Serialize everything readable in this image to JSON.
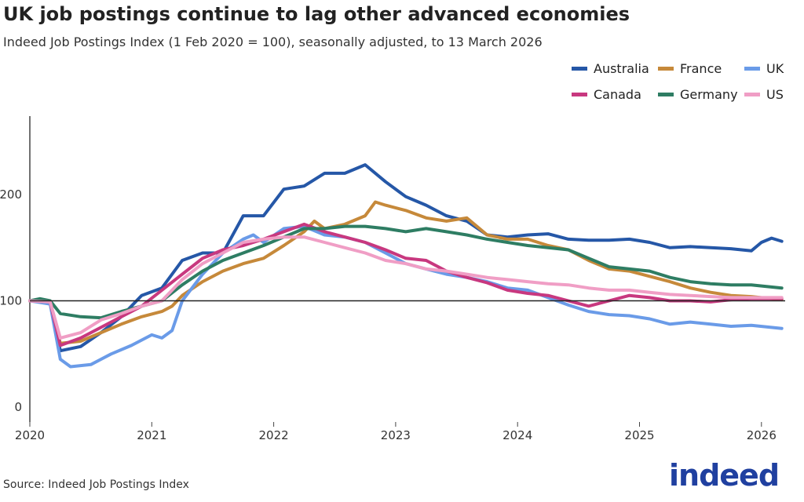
{
  "title": "UK job postings continue to lag other advanced economies",
  "subtitle": "Indeed Job Postings Index (1 Feb 2020 = 100), seasonally adjusted, to 13 March 2026",
  "source": "Source: Indeed Job Postings Index",
  "logo": "indeed",
  "chart_data": {
    "type": "line",
    "title": "UK job postings continue to lag other advanced economies",
    "xlabel": "",
    "ylabel": "",
    "xlim": [
      "2020-01",
      "2026-03"
    ],
    "ylim": [
      0,
      250
    ],
    "xticks": [
      "2020",
      "2021",
      "2022",
      "2023",
      "2024",
      "2025",
      "2026"
    ],
    "yticks": [
      0,
      100,
      200
    ],
    "reference_line": 100,
    "grid": false,
    "legend": "top-right",
    "series": [
      {
        "name": "Australia",
        "color": "#2557a7",
        "points": [
          [
            "2020-01",
            100
          ],
          [
            "2020-03",
            99
          ],
          [
            "2020-04",
            53
          ],
          [
            "2020-06",
            57
          ],
          [
            "2020-08",
            70
          ],
          [
            "2020-10",
            85
          ],
          [
            "2020-12",
            105
          ],
          [
            "2021-02",
            112
          ],
          [
            "2021-04",
            138
          ],
          [
            "2021-06",
            145
          ],
          [
            "2021-08",
            145
          ],
          [
            "2021-10",
            180
          ],
          [
            "2021-12",
            180
          ],
          [
            "2022-02",
            205
          ],
          [
            "2022-04",
            208
          ],
          [
            "2022-06",
            220
          ],
          [
            "2022-08",
            220
          ],
          [
            "2022-10",
            228
          ],
          [
            "2022-12",
            212
          ],
          [
            "2023-02",
            198
          ],
          [
            "2023-04",
            190
          ],
          [
            "2023-06",
            180
          ],
          [
            "2023-08",
            175
          ],
          [
            "2023-10",
            162
          ],
          [
            "2023-12",
            160
          ],
          [
            "2024-02",
            162
          ],
          [
            "2024-04",
            163
          ],
          [
            "2024-06",
            158
          ],
          [
            "2024-08",
            157
          ],
          [
            "2024-10",
            157
          ],
          [
            "2024-12",
            158
          ],
          [
            "2025-02",
            155
          ],
          [
            "2025-04",
            150
          ],
          [
            "2025-06",
            151
          ],
          [
            "2025-08",
            150
          ],
          [
            "2025-10",
            149
          ],
          [
            "2025-12",
            147
          ],
          [
            "2026-01",
            155
          ],
          [
            "2026-02",
            159
          ],
          [
            "2026-03",
            156
          ]
        ]
      },
      {
        "name": "France",
        "color": "#c6893a",
        "points": [
          [
            "2020-01",
            100
          ],
          [
            "2020-03",
            99
          ],
          [
            "2020-04",
            60
          ],
          [
            "2020-06",
            62
          ],
          [
            "2020-08",
            70
          ],
          [
            "2020-10",
            78
          ],
          [
            "2020-12",
            85
          ],
          [
            "2021-02",
            90
          ],
          [
            "2021-03",
            95
          ],
          [
            "2021-04",
            105
          ],
          [
            "2021-06",
            118
          ],
          [
            "2021-08",
            128
          ],
          [
            "2021-10",
            135
          ],
          [
            "2021-12",
            140
          ],
          [
            "2022-02",
            152
          ],
          [
            "2022-04",
            165
          ],
          [
            "2022-05",
            175
          ],
          [
            "2022-06",
            168
          ],
          [
            "2022-08",
            172
          ],
          [
            "2022-10",
            180
          ],
          [
            "2022-11",
            193
          ],
          [
            "2022-12",
            190
          ],
          [
            "2023-02",
            185
          ],
          [
            "2023-04",
            178
          ],
          [
            "2023-06",
            175
          ],
          [
            "2023-08",
            178
          ],
          [
            "2023-10",
            162
          ],
          [
            "2023-12",
            158
          ],
          [
            "2024-02",
            158
          ],
          [
            "2024-04",
            152
          ],
          [
            "2024-06",
            148
          ],
          [
            "2024-08",
            138
          ],
          [
            "2024-10",
            130
          ],
          [
            "2024-12",
            128
          ],
          [
            "2025-02",
            123
          ],
          [
            "2025-04",
            118
          ],
          [
            "2025-06",
            112
          ],
          [
            "2025-08",
            108
          ],
          [
            "2025-10",
            105
          ],
          [
            "2025-12",
            104
          ],
          [
            "2026-03",
            101
          ]
        ]
      },
      {
        "name": "UK",
        "color": "#6a9be8",
        "points": [
          [
            "2020-01",
            100
          ],
          [
            "2020-03",
            97
          ],
          [
            "2020-04",
            45
          ],
          [
            "2020-05",
            38
          ],
          [
            "2020-07",
            40
          ],
          [
            "2020-09",
            50
          ],
          [
            "2020-11",
            58
          ],
          [
            "2021-01",
            68
          ],
          [
            "2021-02",
            65
          ],
          [
            "2021-03",
            72
          ],
          [
            "2021-04",
            100
          ],
          [
            "2021-06",
            125
          ],
          [
            "2021-08",
            145
          ],
          [
            "2021-10",
            158
          ],
          [
            "2021-11",
            162
          ],
          [
            "2021-12",
            155
          ],
          [
            "2022-02",
            168
          ],
          [
            "2022-04",
            170
          ],
          [
            "2022-06",
            162
          ],
          [
            "2022-08",
            160
          ],
          [
            "2022-10",
            155
          ],
          [
            "2022-12",
            145
          ],
          [
            "2023-02",
            135
          ],
          [
            "2023-04",
            130
          ],
          [
            "2023-06",
            125
          ],
          [
            "2023-08",
            122
          ],
          [
            "2023-10",
            118
          ],
          [
            "2023-12",
            112
          ],
          [
            "2024-02",
            110
          ],
          [
            "2024-04",
            103
          ],
          [
            "2024-06",
            96
          ],
          [
            "2024-08",
            90
          ],
          [
            "2024-10",
            87
          ],
          [
            "2024-12",
            86
          ],
          [
            "2025-02",
            83
          ],
          [
            "2025-04",
            78
          ],
          [
            "2025-06",
            80
          ],
          [
            "2025-08",
            78
          ],
          [
            "2025-10",
            76
          ],
          [
            "2025-12",
            77
          ],
          [
            "2026-03",
            74
          ]
        ]
      },
      {
        "name": "Canada",
        "color": "#c8387f",
        "points": [
          [
            "2020-01",
            100
          ],
          [
            "2020-03",
            99
          ],
          [
            "2020-04",
            58
          ],
          [
            "2020-06",
            65
          ],
          [
            "2020-08",
            75
          ],
          [
            "2020-10",
            85
          ],
          [
            "2020-12",
            95
          ],
          [
            "2021-02",
            110
          ],
          [
            "2021-04",
            125
          ],
          [
            "2021-06",
            140
          ],
          [
            "2021-08",
            148
          ],
          [
            "2021-10",
            152
          ],
          [
            "2021-12",
            158
          ],
          [
            "2022-02",
            165
          ],
          [
            "2022-04",
            172
          ],
          [
            "2022-06",
            165
          ],
          [
            "2022-08",
            160
          ],
          [
            "2022-10",
            155
          ],
          [
            "2022-12",
            148
          ],
          [
            "2023-02",
            140
          ],
          [
            "2023-04",
            138
          ],
          [
            "2023-06",
            128
          ],
          [
            "2023-08",
            122
          ],
          [
            "2023-10",
            117
          ],
          [
            "2023-12",
            110
          ],
          [
            "2024-02",
            107
          ],
          [
            "2024-04",
            105
          ],
          [
            "2024-06",
            100
          ],
          [
            "2024-08",
            95
          ],
          [
            "2024-10",
            100
          ],
          [
            "2024-12",
            105
          ],
          [
            "2025-02",
            103
          ],
          [
            "2025-04",
            100
          ],
          [
            "2025-06",
            100
          ],
          [
            "2025-08",
            99
          ],
          [
            "2025-10",
            101
          ],
          [
            "2025-12",
            102
          ],
          [
            "2026-03",
            102
          ]
        ]
      },
      {
        "name": "Germany",
        "color": "#2e7d63",
        "points": [
          [
            "2020-01",
            100
          ],
          [
            "2020-02",
            102
          ],
          [
            "2020-03",
            100
          ],
          [
            "2020-04",
            88
          ],
          [
            "2020-06",
            85
          ],
          [
            "2020-08",
            84
          ],
          [
            "2020-10",
            90
          ],
          [
            "2020-12",
            95
          ],
          [
            "2021-02",
            100
          ],
          [
            "2021-04",
            115
          ],
          [
            "2021-06",
            128
          ],
          [
            "2021-08",
            138
          ],
          [
            "2021-10",
            145
          ],
          [
            "2021-12",
            152
          ],
          [
            "2022-02",
            160
          ],
          [
            "2022-04",
            168
          ],
          [
            "2022-06",
            168
          ],
          [
            "2022-08",
            170
          ],
          [
            "2022-10",
            170
          ],
          [
            "2022-12",
            168
          ],
          [
            "2023-02",
            165
          ],
          [
            "2023-04",
            168
          ],
          [
            "2023-06",
            165
          ],
          [
            "2023-08",
            162
          ],
          [
            "2023-10",
            158
          ],
          [
            "2023-12",
            155
          ],
          [
            "2024-02",
            152
          ],
          [
            "2024-04",
            150
          ],
          [
            "2024-06",
            148
          ],
          [
            "2024-08",
            140
          ],
          [
            "2024-10",
            132
          ],
          [
            "2024-12",
            130
          ],
          [
            "2025-02",
            128
          ],
          [
            "2025-04",
            122
          ],
          [
            "2025-06",
            118
          ],
          [
            "2025-08",
            116
          ],
          [
            "2025-10",
            115
          ],
          [
            "2025-12",
            115
          ],
          [
            "2026-03",
            112
          ]
        ]
      },
      {
        "name": "US",
        "color": "#f09ec5",
        "points": [
          [
            "2020-01",
            100
          ],
          [
            "2020-03",
            99
          ],
          [
            "2020-04",
            65
          ],
          [
            "2020-06",
            70
          ],
          [
            "2020-08",
            82
          ],
          [
            "2020-10",
            88
          ],
          [
            "2020-12",
            95
          ],
          [
            "2021-02",
            100
          ],
          [
            "2021-04",
            120
          ],
          [
            "2021-06",
            135
          ],
          [
            "2021-08",
            145
          ],
          [
            "2021-10",
            155
          ],
          [
            "2021-12",
            158
          ],
          [
            "2022-02",
            160
          ],
          [
            "2022-04",
            160
          ],
          [
            "2022-06",
            155
          ],
          [
            "2022-08",
            150
          ],
          [
            "2022-10",
            145
          ],
          [
            "2022-12",
            138
          ],
          [
            "2023-02",
            135
          ],
          [
            "2023-04",
            130
          ],
          [
            "2023-06",
            128
          ],
          [
            "2023-08",
            125
          ],
          [
            "2023-10",
            122
          ],
          [
            "2023-12",
            120
          ],
          [
            "2024-02",
            118
          ],
          [
            "2024-04",
            116
          ],
          [
            "2024-06",
            115
          ],
          [
            "2024-08",
            112
          ],
          [
            "2024-10",
            110
          ],
          [
            "2024-12",
            110
          ],
          [
            "2025-02",
            108
          ],
          [
            "2025-04",
            106
          ],
          [
            "2025-06",
            105
          ],
          [
            "2025-08",
            104
          ],
          [
            "2025-10",
            103
          ],
          [
            "2025-12",
            103
          ],
          [
            "2026-03",
            103
          ]
        ]
      }
    ]
  }
}
